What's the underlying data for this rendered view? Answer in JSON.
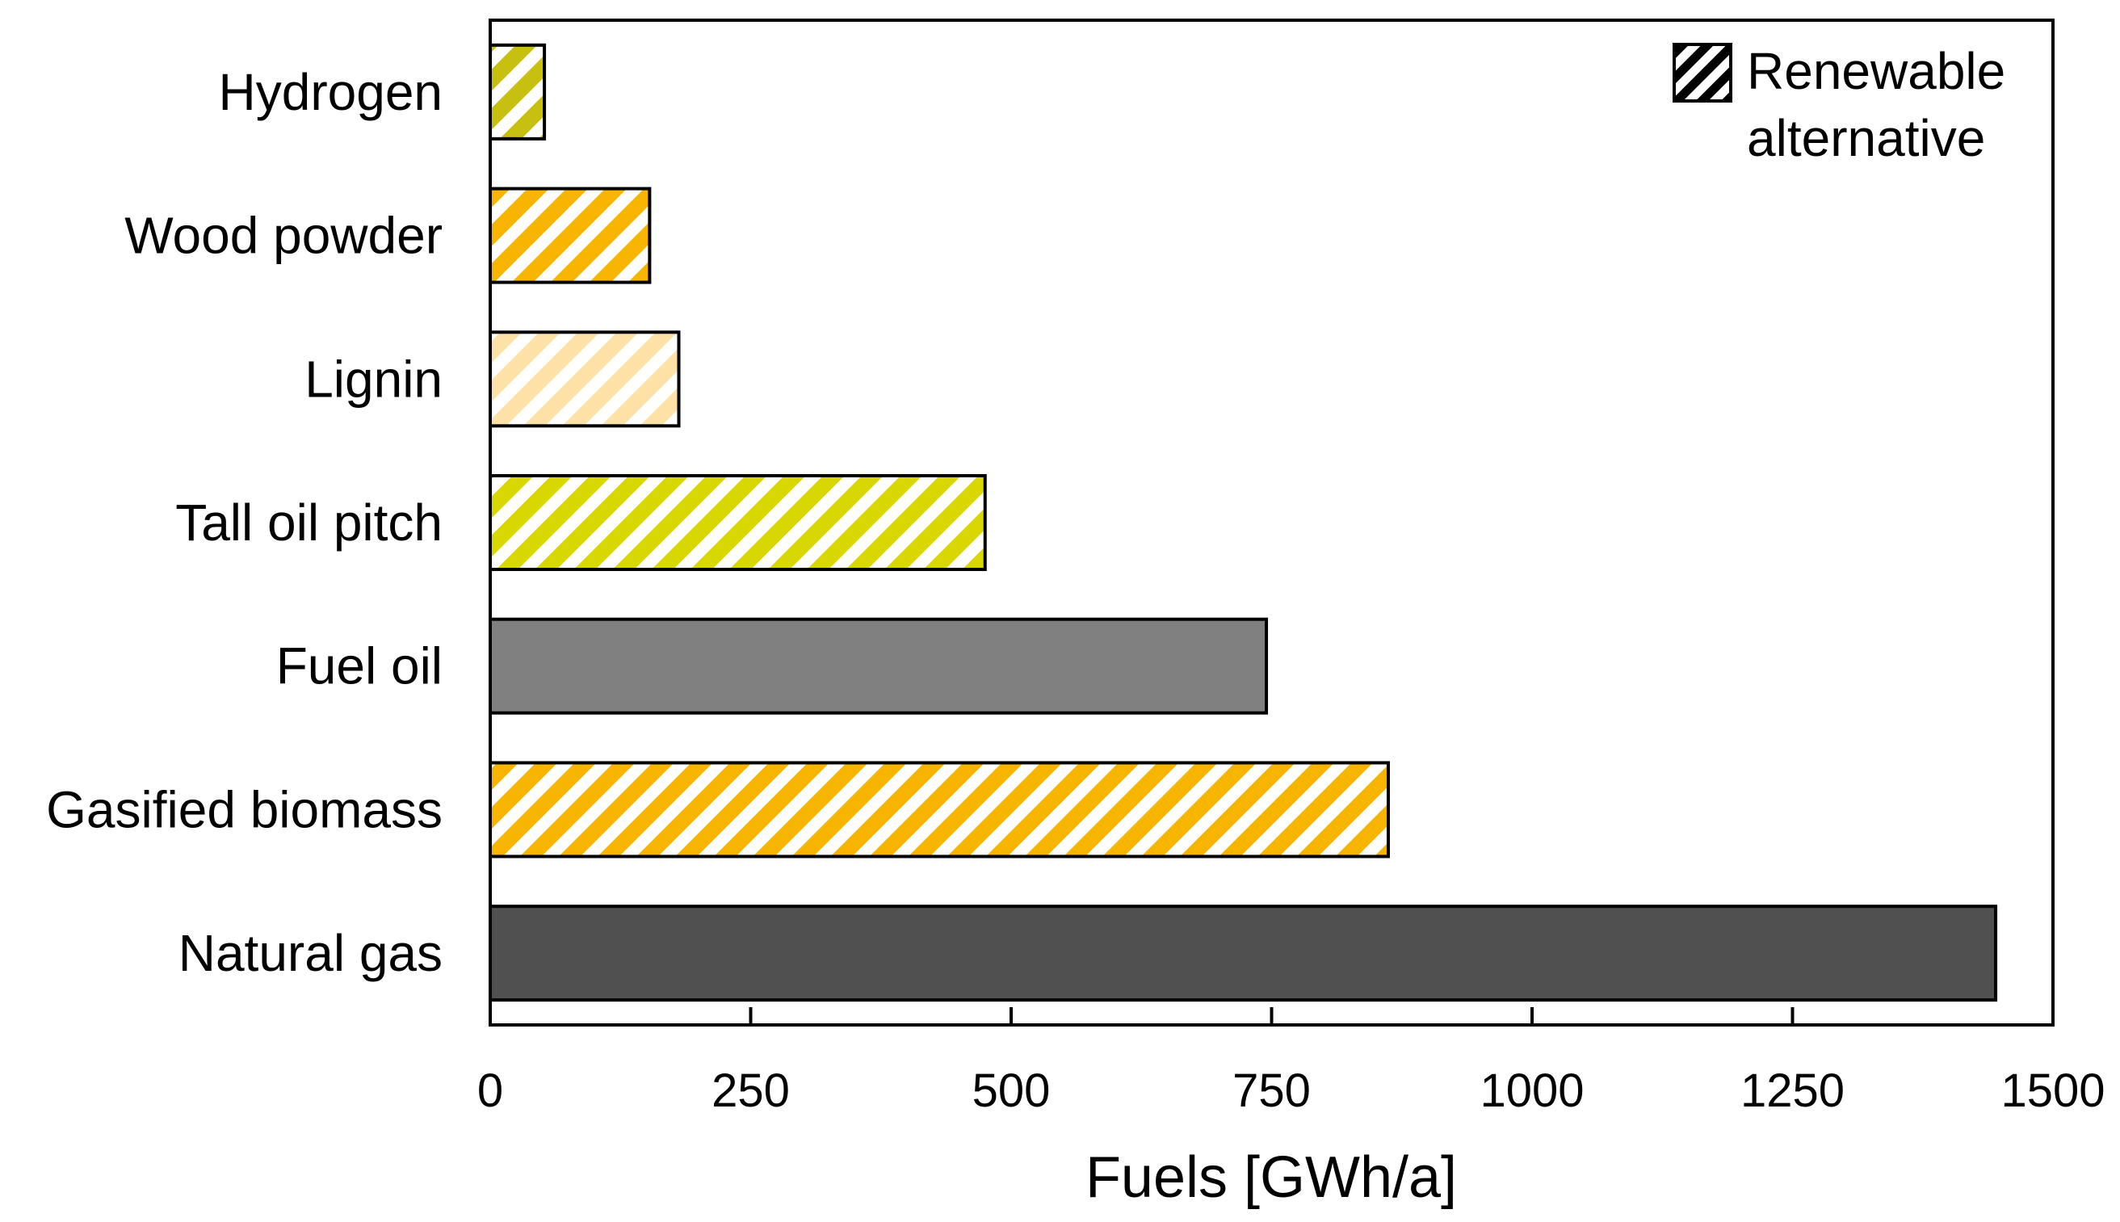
{
  "chart_data": {
    "type": "bar",
    "orientation": "horizontal",
    "title": "",
    "xlabel": "Fuels [GWh/a]",
    "ylabel": "",
    "xlim": [
      0,
      1500
    ],
    "xticks": [
      "0",
      "250",
      "500",
      "750",
      "1000",
      "1250",
      "1500"
    ],
    "grid": false,
    "categories": [
      "Hydrogen",
      "Wood powder",
      "Lignin",
      "Tall oil pitch",
      "Fuel oil",
      "Gasified biomass",
      "Natural gas"
    ],
    "values": [
      52,
      153,
      181,
      475,
      745,
      862,
      1445
    ],
    "renewable": [
      true,
      true,
      true,
      true,
      false,
      true,
      false
    ],
    "colors": [
      "#c8c010",
      "#f7b500",
      "#fde1a6",
      "#d8d800",
      "#808080",
      "#f7b500",
      "#505050"
    ],
    "legend": {
      "position": "top-right",
      "label_line1": "Renewable",
      "label_line2": "alternative"
    }
  }
}
